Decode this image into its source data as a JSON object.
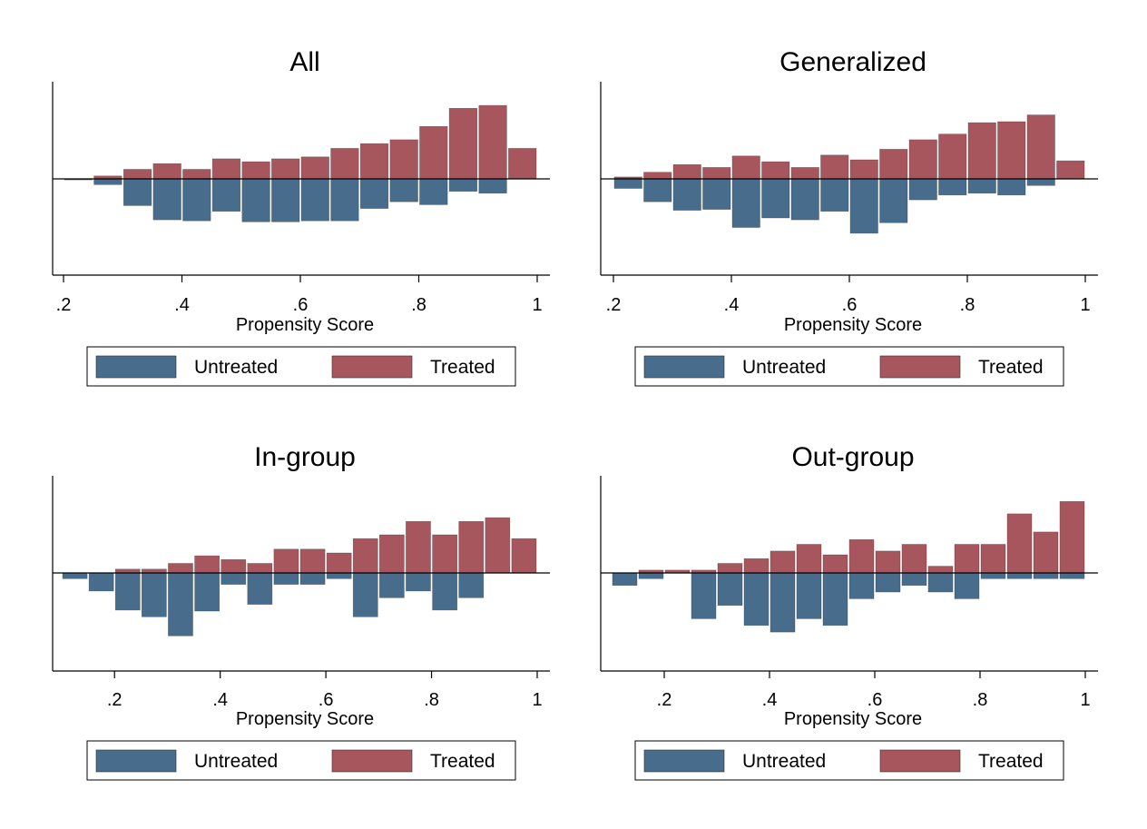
{
  "colors": {
    "untreated": "#486d8c",
    "treated": "#a8565e"
  },
  "legend": {
    "untreated_label": "Untreated",
    "treated_label": "Treated"
  },
  "chart_data": [
    {
      "type": "bar",
      "title": "All",
      "xlabel": "Propensity Score",
      "xlim": [
        0.2,
        1.0
      ],
      "xticks": [
        ".2",
        ".4",
        ".6",
        ".8",
        "1"
      ],
      "xtick_values": [
        0.2,
        0.4,
        0.6,
        0.8,
        1.0
      ],
      "ylim": [
        -10.5,
        10.5
      ],
      "bin_width": 0.05,
      "series": [
        {
          "name": "Untreated",
          "x": [
            0.225,
            0.275,
            0.325,
            0.375,
            0.425,
            0.475,
            0.525,
            0.575,
            0.625,
            0.675,
            0.725,
            0.775,
            0.825,
            0.875,
            0.925
          ],
          "values": [
            -0.1,
            -0.6,
            -2.8,
            -4.3,
            -4.4,
            -3.4,
            -4.5,
            -4.5,
            -4.4,
            -4.4,
            -3.1,
            -2.4,
            -2.7,
            -1.3,
            -1.5
          ]
        },
        {
          "name": "Treated",
          "x": [
            0.275,
            0.325,
            0.375,
            0.425,
            0.475,
            0.525,
            0.575,
            0.625,
            0.675,
            0.725,
            0.775,
            0.825,
            0.875,
            0.925,
            0.975
          ],
          "values": [
            0.3,
            1.0,
            1.6,
            1.0,
            2.1,
            1.8,
            2.1,
            2.3,
            3.2,
            3.7,
            4.1,
            5.5,
            7.4,
            7.7,
            3.2
          ]
        }
      ]
    },
    {
      "type": "bar",
      "title": "Generalized",
      "xlabel": "Propensity Score",
      "xlim": [
        0.2,
        1.0
      ],
      "xticks": [
        ".2",
        ".4",
        ".6",
        ".8",
        "1"
      ],
      "xtick_values": [
        0.2,
        0.4,
        0.6,
        0.8,
        1.0
      ],
      "ylim": [
        -10.5,
        10.5
      ],
      "bin_width": 0.05,
      "series": [
        {
          "name": "Untreated",
          "x": [
            0.225,
            0.275,
            0.325,
            0.375,
            0.425,
            0.475,
            0.525,
            0.575,
            0.625,
            0.675,
            0.725,
            0.775,
            0.825,
            0.875,
            0.925
          ],
          "values": [
            -1.0,
            -2.4,
            -3.3,
            -3.2,
            -5.1,
            -4.1,
            -4.3,
            -3.4,
            -5.7,
            -4.6,
            -2.2,
            -1.7,
            -1.5,
            -1.7,
            -0.7
          ]
        },
        {
          "name": "Treated",
          "x": [
            0.225,
            0.275,
            0.325,
            0.375,
            0.425,
            0.475,
            0.525,
            0.575,
            0.625,
            0.675,
            0.725,
            0.775,
            0.825,
            0.875,
            0.925,
            0.975
          ],
          "values": [
            0.2,
            0.7,
            1.5,
            1.2,
            2.4,
            1.8,
            1.2,
            2.5,
            2.0,
            3.1,
            4.1,
            4.7,
            5.9,
            6.0,
            6.7,
            1.9
          ]
        }
      ]
    },
    {
      "type": "bar",
      "title": "In-group",
      "xlabel": "Propensity Score",
      "xlim": [
        0.1,
        1.0
      ],
      "xticks": [
        ".2",
        ".4",
        ".6",
        ".8",
        "1"
      ],
      "xtick_values": [
        0.2,
        0.4,
        0.6,
        0.8,
        1.0
      ],
      "ylim": [
        -10.5,
        10.5
      ],
      "bin_width": 0.05,
      "series": [
        {
          "name": "Untreated",
          "x": [
            0.125,
            0.175,
            0.225,
            0.275,
            0.325,
            0.375,
            0.425,
            0.475,
            0.525,
            0.575,
            0.625,
            0.675,
            0.725,
            0.775,
            0.825,
            0.875
          ],
          "values": [
            -0.6,
            -1.9,
            -3.9,
            -4.6,
            -6.6,
            -4.0,
            -1.2,
            -3.3,
            -1.2,
            -1.2,
            -0.6,
            -4.6,
            -2.6,
            -1.9,
            -3.9,
            -2.6
          ]
        },
        {
          "name": "Treated",
          "x": [
            0.225,
            0.275,
            0.325,
            0.375,
            0.425,
            0.475,
            0.525,
            0.575,
            0.625,
            0.675,
            0.725,
            0.775,
            0.825,
            0.875,
            0.925,
            0.975
          ],
          "values": [
            0.4,
            0.4,
            1.0,
            1.8,
            1.4,
            1.0,
            2.5,
            2.5,
            2.1,
            3.6,
            4.0,
            5.4,
            4.0,
            5.4,
            5.8,
            3.6
          ]
        }
      ]
    },
    {
      "type": "bar",
      "title": "Out-group",
      "xlabel": "Propensity Score",
      "xlim": [
        0.1,
        1.0
      ],
      "xticks": [
        ".2",
        ".4",
        ".6",
        ".8",
        "1"
      ],
      "xtick_values": [
        0.2,
        0.4,
        0.6,
        0.8,
        1.0
      ],
      "ylim": [
        -10.5,
        10.5
      ],
      "bin_width": 0.05,
      "series": [
        {
          "name": "Untreated",
          "x": [
            0.125,
            0.175,
            0.275,
            0.325,
            0.375,
            0.425,
            0.475,
            0.525,
            0.575,
            0.625,
            0.675,
            0.725,
            0.775,
            0.825,
            0.875,
            0.925,
            0.975
          ],
          "values": [
            -1.3,
            -0.6,
            -4.8,
            -3.4,
            -5.5,
            -6.2,
            -4.8,
            -5.5,
            -2.7,
            -2.0,
            -1.3,
            -2.0,
            -2.7,
            -0.6,
            -0.6,
            -0.6,
            -0.6
          ]
        },
        {
          "name": "Treated",
          "x": [
            0.175,
            0.225,
            0.275,
            0.325,
            0.375,
            0.425,
            0.475,
            0.525,
            0.575,
            0.625,
            0.675,
            0.725,
            0.775,
            0.825,
            0.875,
            0.925,
            0.975
          ],
          "values": [
            0.3,
            0.3,
            0.3,
            1.0,
            1.5,
            2.3,
            3.0,
            1.9,
            3.5,
            2.3,
            3.0,
            0.7,
            3.0,
            3.0,
            6.2,
            4.3,
            7.5
          ]
        }
      ]
    }
  ]
}
